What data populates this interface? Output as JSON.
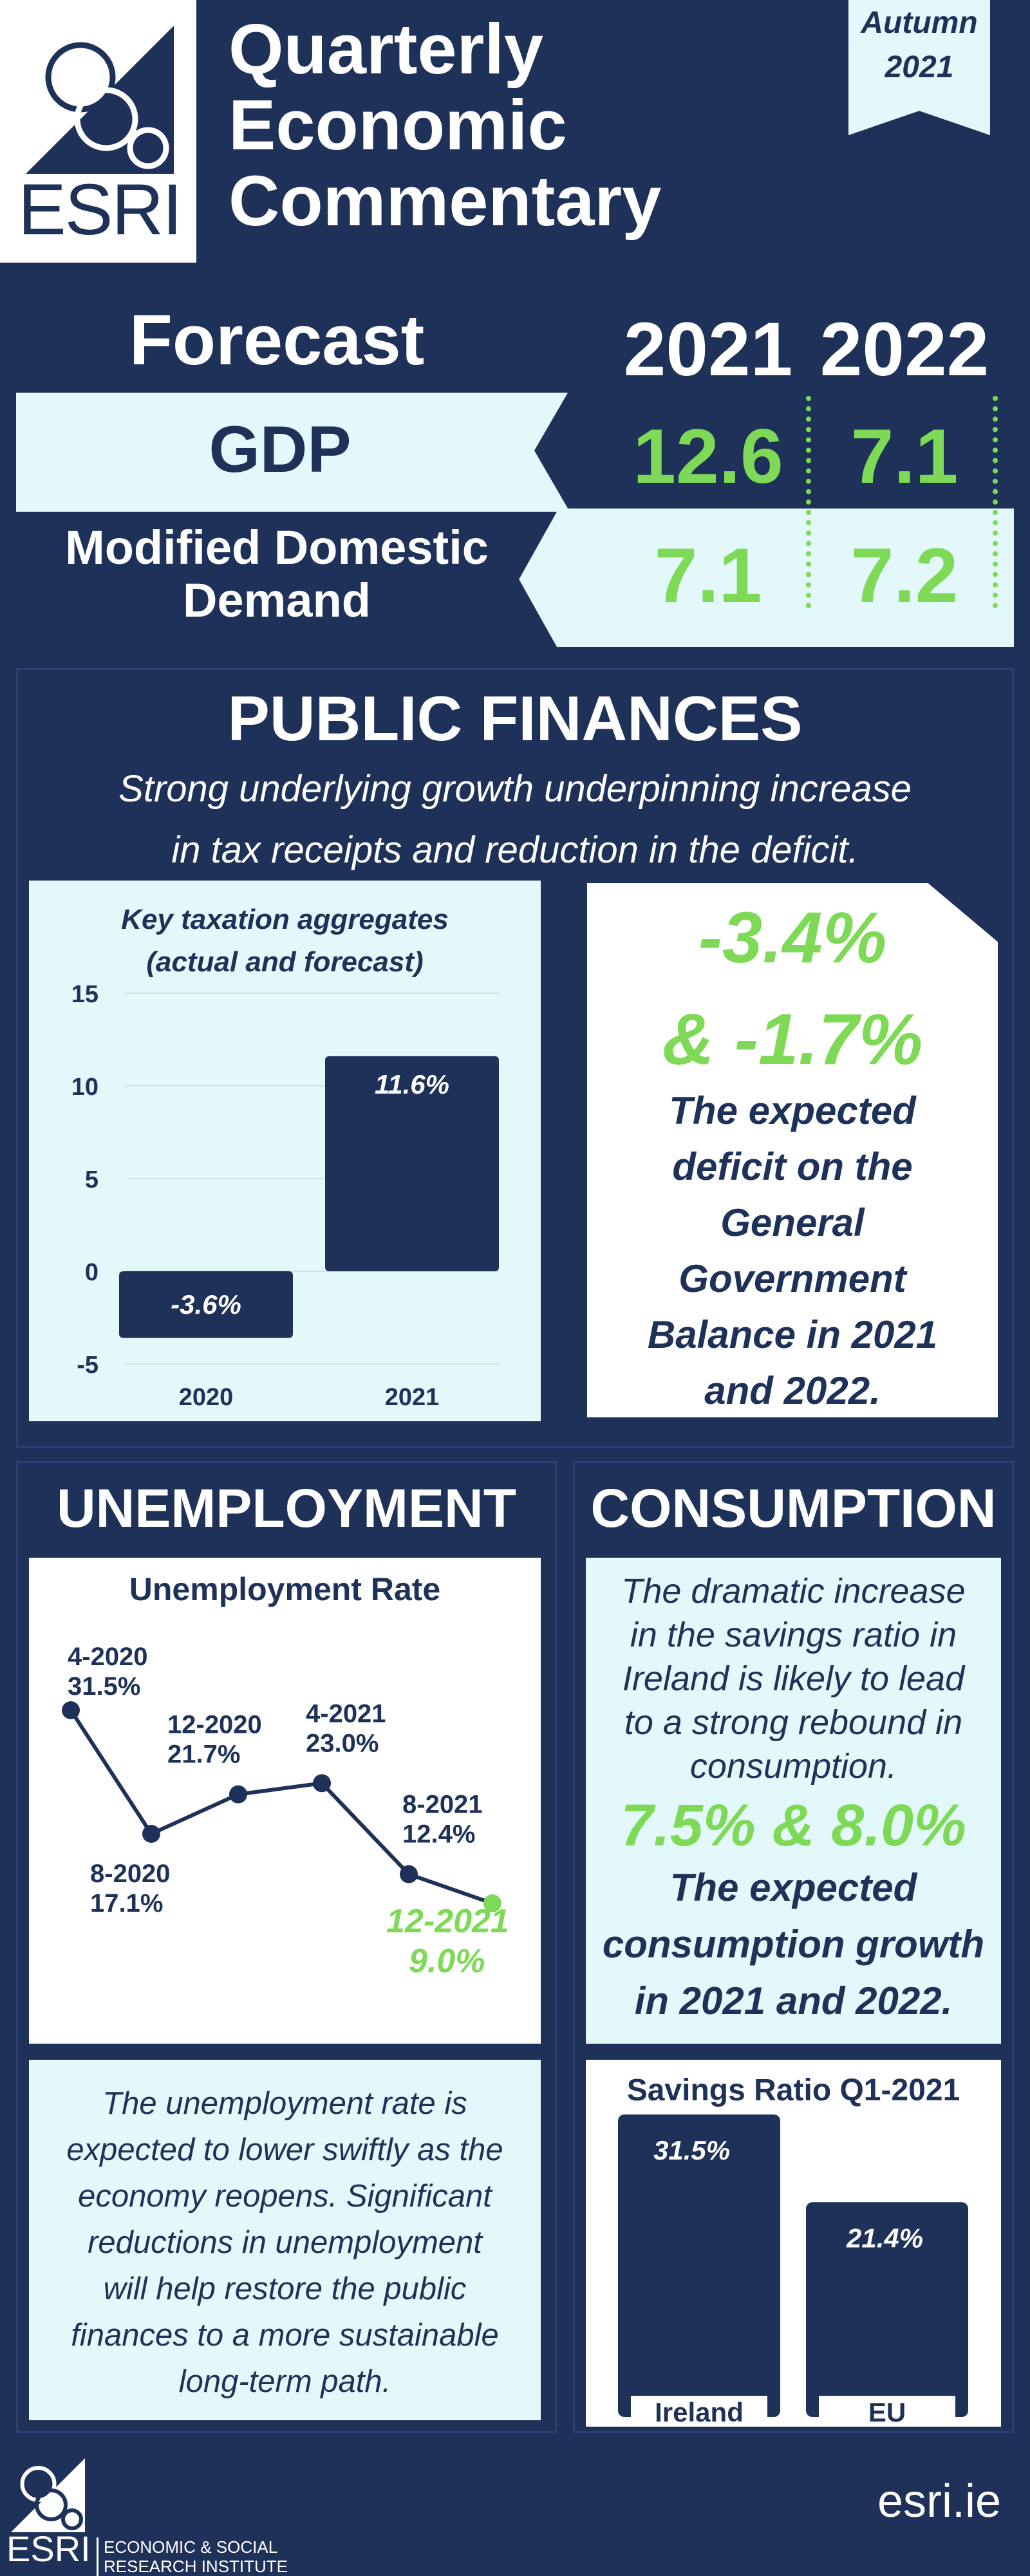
{
  "header": {
    "logo_text": "ESRI",
    "title_lines": [
      "Quarterly",
      "Economic",
      "Commentary"
    ],
    "edition_season": "Autumn",
    "edition_year": "2021"
  },
  "forecast": {
    "heading": "Forecast",
    "years": [
      "2021",
      "2022"
    ],
    "rows": [
      {
        "label": "GDP",
        "v2021": "12.6",
        "v2022": "7.1"
      },
      {
        "label_line1": "Modified Domestic",
        "label_line2": "Demand",
        "v2021": "7.1",
        "v2022": "7.2"
      }
    ]
  },
  "public_finances": {
    "heading": "PUBLIC FINANCES",
    "subtitle_line1": "Strong underlying growth underpinning increase",
    "subtitle_line2": "in tax receipts and reduction in the deficit.",
    "deficit_value1": "-3.4%",
    "deficit_value2": "& -1.7%",
    "deficit_text": [
      "The expected",
      "deficit on the",
      "General",
      "Government",
      "Balance in 2021",
      "and 2022."
    ]
  },
  "tax_chart": {
    "chart_data": {
      "type": "bar",
      "title": "Key taxation aggregates (actual and forecast)",
      "title_line1": "Key taxation aggregates",
      "title_line2": "(actual and forecast)",
      "categories": [
        "2020",
        "2021"
      ],
      "values": [
        -3.6,
        11.6
      ],
      "data_labels": [
        "-3.6%",
        "11.6%"
      ],
      "yticks": [
        "15",
        "10",
        "5",
        "0",
        "-5"
      ],
      "ylim": [
        -5,
        15
      ],
      "grid": true,
      "bar_color": "#1e3158"
    }
  },
  "unemployment": {
    "heading": "UNEMPLOYMENT",
    "chart_title": "Unemployment Rate",
    "chart_data": {
      "type": "line",
      "x": [
        "4-2020",
        "8-2020",
        "12-2020",
        "4-2021",
        "8-2021",
        "12-2021"
      ],
      "values": [
        31.5,
        17.1,
        21.7,
        23.0,
        12.4,
        9.0
      ],
      "value_labels": [
        "31.5%",
        "17.1%",
        "21.7%",
        "23.0%",
        "12.4%",
        "9.0%"
      ],
      "forecast_color": "#7ed957",
      "line_color": "#1e3158"
    },
    "text_lines": [
      "The unemployment rate is",
      "expected to lower swiftly as the",
      "economy reopens. Significant",
      "reductions in unemployment",
      "will help restore the public",
      "finances to a more sustainable",
      "long-term path."
    ]
  },
  "consumption": {
    "heading": "CONSUMPTION",
    "intro_lines": [
      "The dramatic increase",
      "in the savings ratio in",
      "Ireland is likely to lead",
      "to a strong rebound in",
      "consumption."
    ],
    "growth_value": "7.5% & 8.0%",
    "growth_lines": [
      "The expected",
      "consumption growth",
      "in 2021 and 2022."
    ]
  },
  "savings_chart": {
    "chart_data": {
      "type": "bar",
      "title": "Savings Ratio Q1-2021",
      "categories": [
        "Ireland",
        "EU"
      ],
      "values": [
        31.5,
        21.4
      ],
      "data_labels": [
        "31.5%",
        "21.4%"
      ],
      "bar_color": "#1e3158"
    }
  },
  "footer": {
    "logo_text": "ESRI",
    "org_line1": "ECONOMIC & SOCIAL",
    "org_line2": "RESEARCH INSTITUTE",
    "url": "esri.ie"
  },
  "colors": {
    "navy": "#1e3158",
    "light": "#e2f8fa",
    "green": "#7ed957"
  }
}
